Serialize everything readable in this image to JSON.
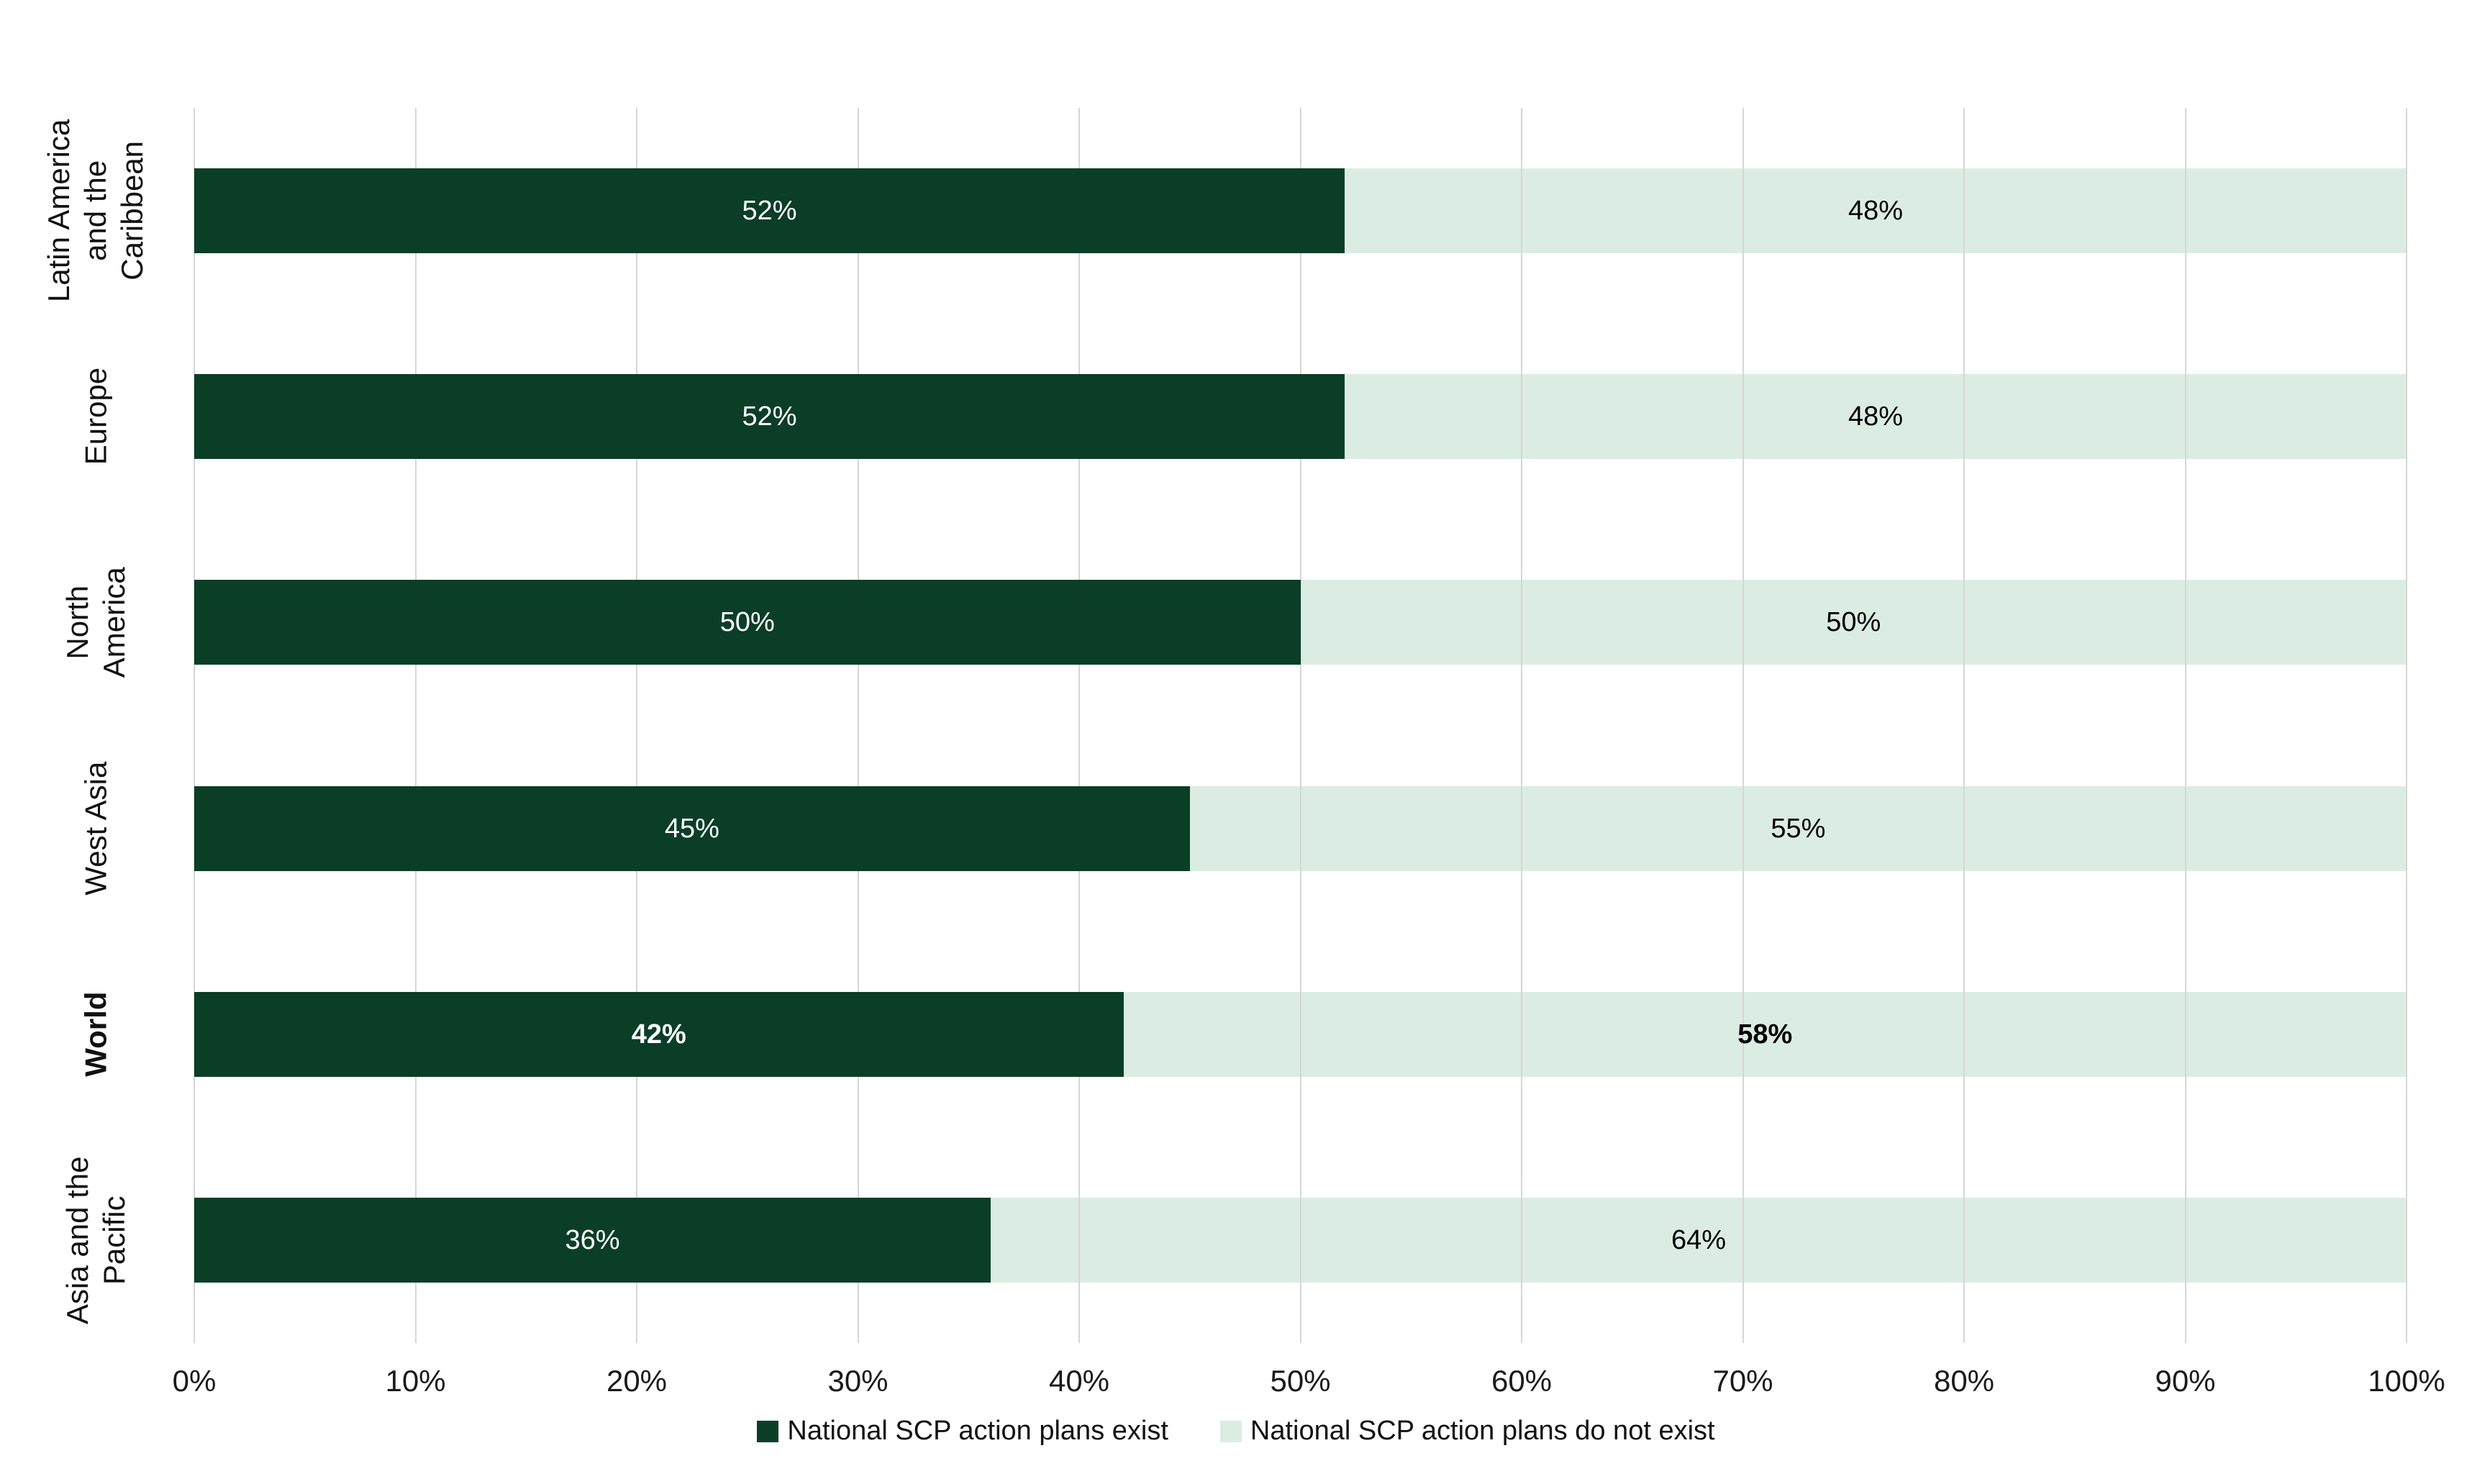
{
  "chart_data": {
    "type": "bar",
    "stacked": true,
    "orientation": "horizontal",
    "title": "",
    "categories": [
      "Latin America and the Caribbean",
      "Europe",
      "North America",
      "West Asia",
      "World",
      "Asia and the Pacific"
    ],
    "bold_category_index": 4,
    "series": [
      {
        "name": "National SCP action plans exist",
        "color": "#0b3e27",
        "values": [
          52,
          52,
          50,
          45,
          42,
          36
        ]
      },
      {
        "name": "National SCP action plans do not exist",
        "color": "#dbede3",
        "values": [
          48,
          48,
          50,
          55,
          58,
          64
        ]
      }
    ],
    "x_tick_labels": [
      "0%",
      "10%",
      "20%",
      "30%",
      "40%",
      "50%",
      "60%",
      "70%",
      "80%",
      "90%",
      "100%"
    ],
    "xlim": [
      0,
      100
    ],
    "grid": "vertical gridlines every 10%",
    "legend_position": "bottom-center",
    "value_labels": "centered inside segments, white on dark / black on light"
  },
  "rows": [
    {
      "lines": [
        "Latin America",
        "and the",
        "Caribbean"
      ],
      "exist_pct": 52,
      "not_pct": 48,
      "exist_label": "52%",
      "not_label": "48%",
      "bold": false
    },
    {
      "lines": [
        "Europe"
      ],
      "exist_pct": 52,
      "not_pct": 48,
      "exist_label": "52%",
      "not_label": "48%",
      "bold": false
    },
    {
      "lines": [
        "North America"
      ],
      "exist_pct": 50,
      "not_pct": 50,
      "exist_label": "50%",
      "not_label": "50%",
      "bold": false
    },
    {
      "lines": [
        "West Asia"
      ],
      "exist_pct": 45,
      "not_pct": 55,
      "exist_label": "45%",
      "not_label": "55%",
      "bold": false
    },
    {
      "lines": [
        "World"
      ],
      "exist_pct": 42,
      "not_pct": 58,
      "exist_label": "42%",
      "not_label": "58%",
      "bold": true
    },
    {
      "lines": [
        "Asia and the",
        "Pacific"
      ],
      "exist_pct": 36,
      "not_pct": 64,
      "exist_label": "36%",
      "not_label": "64%",
      "bold": false
    }
  ],
  "x_axis": {
    "ticks": [
      "0%",
      "10%",
      "20%",
      "30%",
      "40%",
      "50%",
      "60%",
      "70%",
      "80%",
      "90%",
      "100%"
    ]
  },
  "legend": {
    "items": [
      {
        "label": "National SCP action plans exist",
        "color": "#0b3e27"
      },
      {
        "label": "National SCP action plans do not exist",
        "color": "#dbede3"
      }
    ]
  },
  "colors": {
    "bar_dark_green": "#0b3e27",
    "bar_light_green": "#dbede3",
    "gridline": "#d6d6d6",
    "text": "#1a1a1a",
    "background": "#ffffff"
  }
}
